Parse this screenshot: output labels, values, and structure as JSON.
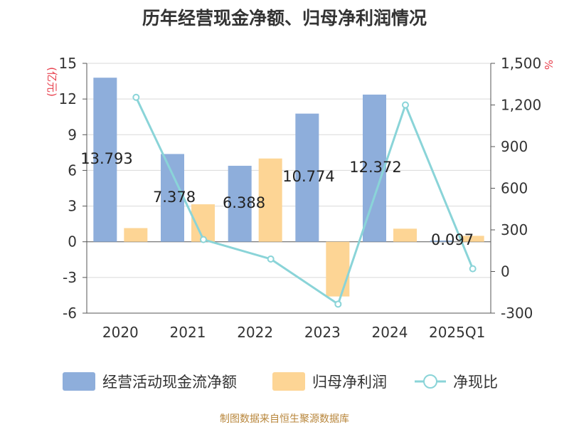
{
  "chart_data": {
    "type": "bar",
    "title": "历年经营现金净额、归母净利润情况",
    "ylabel": "(亿元)",
    "y2label": "%",
    "categories": [
      "2020",
      "2021",
      "2022",
      "2023",
      "2024",
      "2025Q1"
    ],
    "ylim": [
      -6,
      15
    ],
    "yticks": [
      15,
      12,
      9,
      6,
      3,
      0,
      -3,
      -6
    ],
    "y2lim": [
      -300,
      1500
    ],
    "y2ticks": [
      "1,500",
      "1,200",
      "900",
      "600",
      "300",
      "0",
      "-300"
    ],
    "series": [
      {
        "name": "经营活动现金流净额",
        "kind": "bar",
        "color": "#8eaedb",
        "values": [
          13.793,
          7.378,
          6.388,
          10.774,
          12.372,
          0.097
        ],
        "labels": [
          "13.793",
          "7.378",
          "6.388",
          "10.774",
          "12.372",
          "0.097"
        ]
      },
      {
        "name": "归母净利润",
        "kind": "bar",
        "color": "#fdd595",
        "values": [
          1.15,
          3.15,
          7.0,
          -4.6,
          1.1,
          0.5
        ]
      },
      {
        "name": "净现比",
        "kind": "line",
        "axis": "right",
        "color": "#8ad4d8",
        "values": [
          1255,
          230,
          90,
          -235,
          1200,
          20
        ]
      }
    ],
    "legend_position": "bottom"
  },
  "footer": "制图数据来自恒生聚源数据库"
}
